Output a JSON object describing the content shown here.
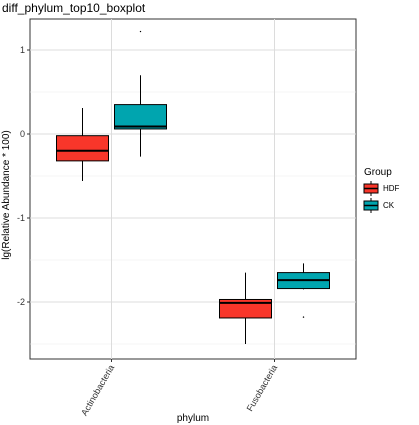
{
  "chart_data": {
    "type": "boxplot",
    "title": "diff_phylum_top10_boxplot",
    "xlabel": "phylum",
    "ylabel": "lg(Relative Abundance * 100)",
    "categories": [
      "Actinobacteria",
      "Fusobacteria"
    ],
    "ylim": [
      -2.55,
      1.4
    ],
    "yticks": [
      -2,
      -1,
      0,
      1
    ],
    "legend": {
      "title": "Group",
      "position": "right",
      "entries": [
        "HDF",
        "CK"
      ]
    },
    "grid": true,
    "series": [
      {
        "name": "HDF",
        "color": "#F8362A",
        "boxes": [
          {
            "category": "Actinobacteria",
            "whisker_low": -0.56,
            "q1": -0.32,
            "median": -0.2,
            "q3": -0.02,
            "whisker_high": 0.31,
            "outliers": []
          },
          {
            "category": "Fusobacteria",
            "whisker_low": -2.5,
            "q1": -2.19,
            "median": -2.01,
            "q3": -1.97,
            "whisker_high": -1.65,
            "outliers": []
          }
        ]
      },
      {
        "name": "CK",
        "color": "#00A5AF",
        "boxes": [
          {
            "category": "Actinobacteria",
            "whisker_low": -0.27,
            "q1": 0.06,
            "median": 0.09,
            "q3": 0.35,
            "whisker_high": 0.7,
            "outliers": [
              1.22
            ]
          },
          {
            "category": "Fusobacteria",
            "whisker_low": -1.85,
            "q1": -1.84,
            "median": -1.74,
            "q3": -1.65,
            "whisker_high": -1.54,
            "outliers": [
              -2.18
            ]
          }
        ]
      }
    ]
  }
}
